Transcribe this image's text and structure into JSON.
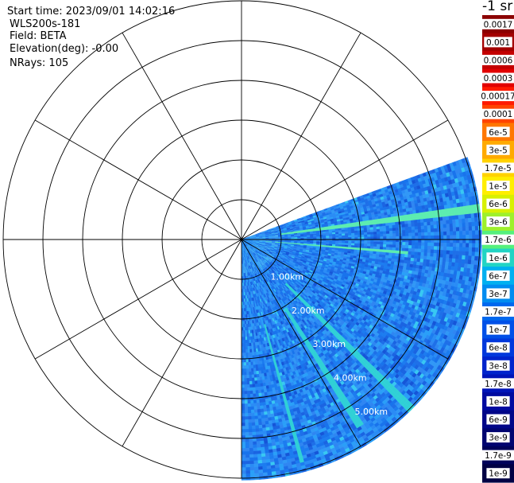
{
  "header": {
    "start_time": "Start time: 2023/09/01 14:02:16",
    "instrument": "WLS200s-181",
    "field": "Field: BETA",
    "elevation": "Elevation(deg): -0.00",
    "nrays": "NRays: 105"
  },
  "colorbar": {
    "unit": "-1 sr",
    "labels": [
      "0.0017",
      "0.001",
      "0.0006",
      "0.0003",
      "0.00017",
      "0.0001",
      "6e-5",
      "3e-5",
      "1.7e-5",
      "1e-5",
      "6e-6",
      "3e-6",
      "1.7e-6",
      "1e-6",
      "6e-7",
      "3e-7",
      "1.7e-7",
      "1e-7",
      "6e-8",
      "3e-8",
      "1.7e-8",
      "1e-8",
      "6e-9",
      "3e-9",
      "1.7e-9",
      "1e-9"
    ],
    "colors": [
      "#8b0000",
      "#a30000",
      "#c40000",
      "#e10000",
      "#ff1a00",
      "#ff4400",
      "#ff7700",
      "#ffaa00",
      "#ffd200",
      "#ffee00",
      "#d8f000",
      "#9ef02c",
      "#55f07c",
      "#22d4c4",
      "#00b0f0",
      "#008cf0",
      "#0068ee",
      "#0050e8",
      "#0038dc",
      "#0024cc",
      "#0014b8",
      "#000aa0",
      "#000688",
      "#000470",
      "#00025a",
      "#000044"
    ]
  },
  "chart_data": {
    "type": "heatmap",
    "projection": "polar-ppi",
    "field": "BETA",
    "range_rings_km": [
      1,
      2,
      3,
      4,
      5
    ],
    "range_labels": [
      "1.00km",
      "2.00km",
      "3.00km",
      "4.00km",
      "5.00km"
    ],
    "max_range_km": 6,
    "spoke_interval_deg": 30,
    "sector_azimuth_deg": [
      70,
      180
    ],
    "nrays": 105,
    "value_scale": "log",
    "value_range": [
      1e-09,
      0.0017
    ],
    "background_value": 3e-07,
    "features": [
      {
        "azimuth_deg": 83,
        "range_km": [
          1.0,
          6.0
        ],
        "value": 3e-06
      },
      {
        "azimuth_deg": 95,
        "range_km": [
          0.5,
          4.2
        ],
        "value": 3e-06
      },
      {
        "azimuth_deg": 135,
        "range_km": [
          1.5,
          6.0
        ],
        "value": 1e-06
      },
      {
        "azimuth_deg": 148,
        "range_km": [
          2.0,
          5.5
        ],
        "value": 1e-06
      },
      {
        "azimuth_deg": 165,
        "range_km": [
          2.2,
          5.8
        ],
        "value": 1e-06
      }
    ]
  }
}
